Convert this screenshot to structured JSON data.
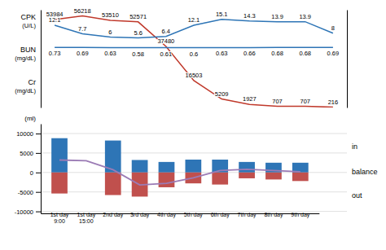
{
  "chart_data": [
    {
      "type": "line",
      "categories": [
        null,
        null,
        null,
        null,
        null,
        null,
        null,
        null,
        null,
        null,
        null
      ],
      "ylim": [
        -30,
        20
      ],
      "y2lim": [
        0,
        60000
      ],
      "tick_labels": false,
      "data_labels": true,
      "series": [
        {
          "name": "CPK",
          "color": "#c0392b",
          "axis": "y2",
          "values": [
            53984,
            56218,
            53510,
            52571,
            37480,
            16503,
            5209,
            1927,
            707,
            707,
            216
          ]
        },
        {
          "name": "BUN",
          "color": "#2e75b6",
          "values": [
            12.1,
            7.7,
            6,
            5.6,
            6.4,
            12.1,
            15.1,
            14.3,
            13.9,
            13.9,
            8
          ]
        },
        {
          "name": "Cr",
          "color": "#2e75b6",
          "values": [
            0.73,
            0.69,
            0.63,
            0.58,
            0.61,
            0.6,
            0.63,
            0.66,
            0.68,
            0.68,
            0.69
          ]
        }
      ],
      "annotations": [
        "(U/L)",
        "(mg/dL)",
        "(mg/dL)"
      ]
    },
    {
      "type": "bar",
      "ylabel": "(ml)",
      "categories": [
        "1st day\n9:00",
        "1st day\n15:00",
        "2nd day",
        "3rd day",
        "4th day",
        "5th day",
        "6th day",
        "7th day",
        "8th day",
        "9th day"
      ],
      "ylim": [
        -10500,
        12500
      ],
      "yticks": [
        -10000,
        -5000,
        0,
        5000,
        10000
      ],
      "grid": true,
      "series": [
        {
          "name": "in",
          "color": "#2e75b6",
          "values": [
            8800,
            0,
            8200,
            3200,
            2700,
            3300,
            3300,
            2700,
            2500,
            2500
          ]
        },
        {
          "name": "out",
          "color": "#c0504d",
          "values": [
            -5400,
            0,
            -5800,
            -6200,
            -3800,
            -2800,
            -3100,
            -1500,
            -1800,
            -2200
          ]
        },
        {
          "name": "balance",
          "type": "line",
          "color": "#9b7bb5",
          "values": [
            3200,
            3000,
            700,
            -3200,
            -2800,
            -1400,
            500,
            800,
            500,
            200
          ]
        }
      ]
    }
  ]
}
